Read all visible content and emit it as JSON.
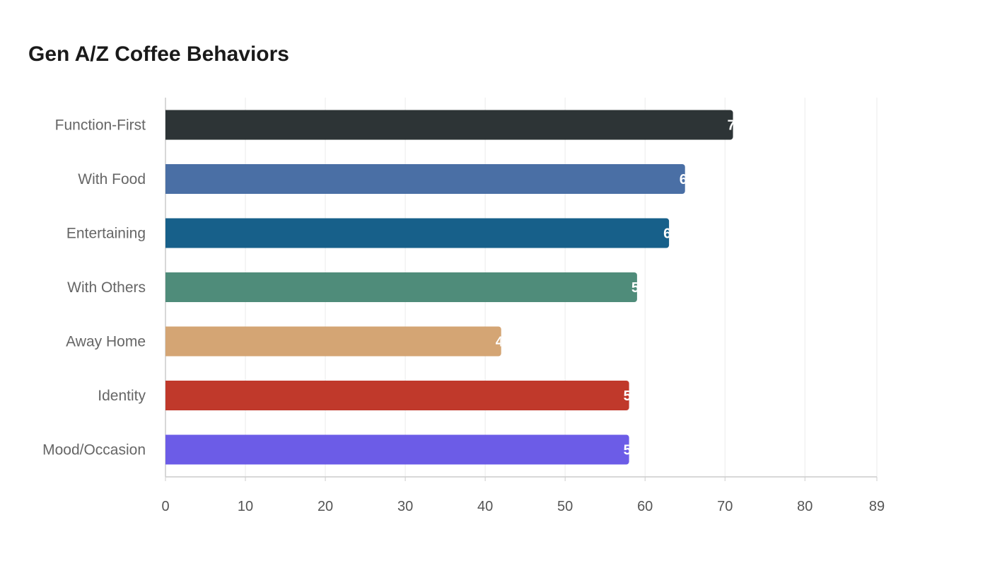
{
  "chart_data": {
    "type": "bar",
    "orientation": "horizontal",
    "title": "Gen A/Z Coffee Behaviors",
    "xlabel": "",
    "ylabel": "",
    "categories": [
      "Function-First",
      "With Food",
      "Entertaining",
      "With Others",
      "Away Home",
      "Identity",
      "Mood/Occasion"
    ],
    "values": [
      71,
      65,
      63,
      59,
      42,
      58,
      58
    ],
    "colors": [
      "#2d3436",
      "#4a6fa5",
      "#17608a",
      "#4f8c7a",
      "#d4a574",
      "#c0392b",
      "#6c5ce7"
    ],
    "xlim": [
      0,
      89
    ],
    "xticks": [
      "0",
      "10",
      "20",
      "30",
      "40",
      "50",
      "60",
      "70",
      "80",
      "89"
    ],
    "grid": true,
    "legend": "none"
  }
}
